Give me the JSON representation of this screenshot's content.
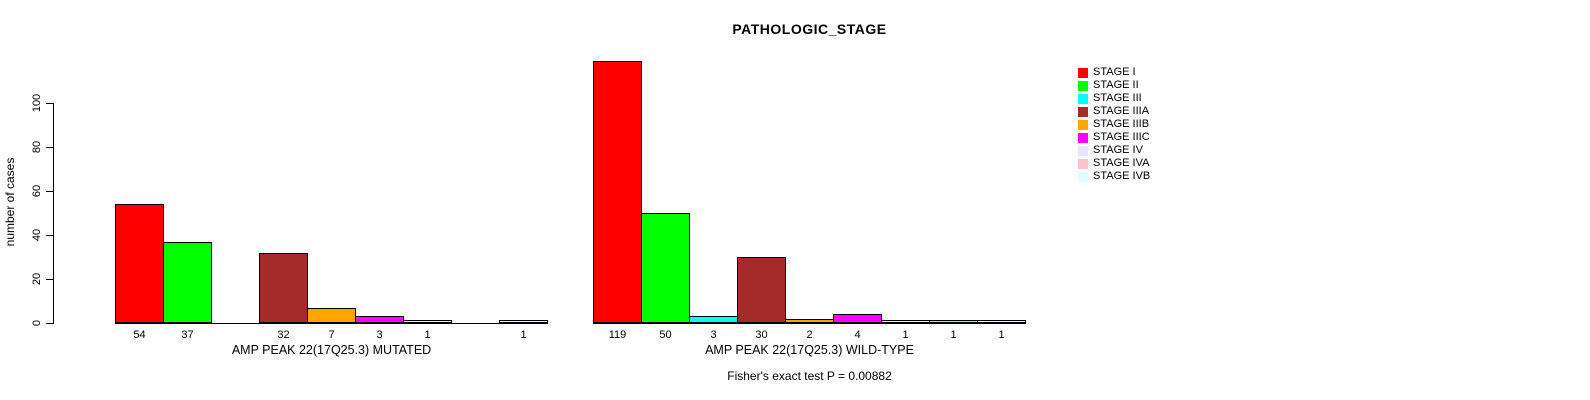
{
  "chart_data": {
    "type": "bar",
    "title": "PATHOLOGIC_STAGE",
    "ylabel": "number of cases",
    "xlabel": "",
    "ylim": [
      0,
      119
    ],
    "yticks": [
      0,
      20,
      40,
      60,
      80,
      100
    ],
    "grid": false,
    "legend_position": "right",
    "categories": [
      "STAGE I",
      "STAGE II",
      "STAGE III",
      "STAGE IIIA",
      "STAGE IIIB",
      "STAGE IIIC",
      "STAGE IV",
      "STAGE IVA",
      "STAGE IVB"
    ],
    "legend": [
      {
        "label": "STAGE I",
        "color": "#FF0000"
      },
      {
        "label": "STAGE II",
        "color": "#00FF00"
      },
      {
        "label": "STAGE III",
        "color": "#00FFFF"
      },
      {
        "label": "STAGE IIIA",
        "color": "#A52A2A"
      },
      {
        "label": "STAGE IIIB",
        "color": "#FFA500"
      },
      {
        "label": "STAGE IIIC",
        "color": "#FF00FF"
      },
      {
        "label": "STAGE IV",
        "color": "#E6E6FA"
      },
      {
        "label": "STAGE IVA",
        "color": "#FFC0CB"
      },
      {
        "label": "STAGE IVB",
        "color": "#E0FFFF"
      }
    ],
    "series": [
      {
        "name": "AMP PEAK 22(17Q25.3) MUTATED",
        "values": [
          54,
          37,
          0,
          32,
          7,
          3,
          1,
          0,
          1
        ]
      },
      {
        "name": "AMP PEAK 22(17Q25.3) WILD-TYPE",
        "values": [
          119,
          50,
          3,
          30,
          2,
          4,
          1,
          1,
          1
        ]
      }
    ],
    "footnote": "Fisher's exact test P = 0.00882",
    "bar_border_color": "#000000",
    "text_color": "#000000",
    "background": "#FFFFFF"
  }
}
